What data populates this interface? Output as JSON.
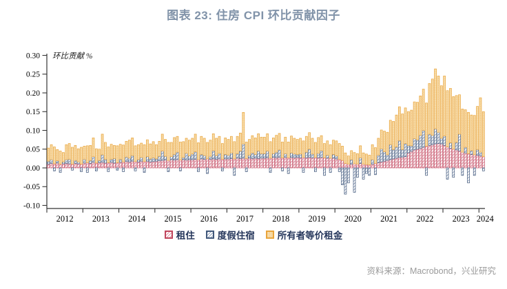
{
  "title": "图表 23: 住房 CPI 环比贡献因子",
  "source": "资料来源：Macrobond，兴业研究",
  "chart_data": {
    "type": "bar",
    "stacked": true,
    "title": "图表 23: 住房 CPI 环比贡献因子",
    "ylabel": "环比贡献 %",
    "unit": "%",
    "freq": "monthly",
    "start": "2012-01",
    "end": "2024-02",
    "ylim": [
      -0.108,
      0.305
    ],
    "y_ticks": [
      0.3,
      0.25,
      0.2,
      0.15,
      0.1,
      0.05,
      0.0,
      -0.05,
      -0.1
    ],
    "x_ticks": [
      2012,
      2013,
      2014,
      2015,
      2016,
      2017,
      2018,
      2019,
      2020,
      2021,
      2022,
      2023,
      2024
    ],
    "grid": false,
    "legend_position": "bottom",
    "colors": {
      "title": "#8193A9",
      "axis": "#333333",
      "tick_text": "#000000",
      "legend_text": "#26375C",
      "source_text": "#9A9A9A",
      "rent_border": "#C0455C",
      "rent_hatch": "#D2607A",
      "lodging_border": "#41587B",
      "lodging_hatch": "#5A7096",
      "oer_border": "#E9A53C",
      "oer_fill": "#F8DFAE",
      "oer_dot": "#FFF7E6"
    },
    "years": [
      2012,
      2013,
      2014,
      2015,
      2016,
      2017,
      2018,
      2019,
      2020,
      2021,
      2022,
      2023,
      2024
    ],
    "series": [
      {
        "name": "租住",
        "pattern": "diagonal-stripes",
        "color": "#C0455C",
        "values": {
          "2012": [
            0.01,
            0.012,
            0.011,
            0.013,
            0.01,
            0.011,
            0.012,
            0.011,
            0.01,
            0.012,
            0.011,
            0.01
          ],
          "2013": [
            0.013,
            0.014,
            0.012,
            0.015,
            0.013,
            0.014,
            0.015,
            0.013,
            0.014,
            0.015,
            0.013,
            0.014
          ],
          "2014": [
            0.015,
            0.016,
            0.017,
            0.016,
            0.018,
            0.017,
            0.016,
            0.018,
            0.017,
            0.018,
            0.016,
            0.017
          ],
          "2015": [
            0.018,
            0.019,
            0.02,
            0.021,
            0.02,
            0.022,
            0.021,
            0.022,
            0.021,
            0.022,
            0.021,
            0.022
          ],
          "2016": [
            0.022,
            0.023,
            0.022,
            0.024,
            0.023,
            0.024,
            0.023,
            0.024,
            0.023,
            0.024,
            0.023,
            0.024
          ],
          "2017": [
            0.024,
            0.025,
            0.024,
            0.026,
            0.025,
            0.026,
            0.025,
            0.026,
            0.025,
            0.026,
            0.025,
            0.026
          ],
          "2018": [
            0.026,
            0.027,
            0.026,
            0.028,
            0.027,
            0.028,
            0.027,
            0.028,
            0.027,
            0.028,
            0.027,
            0.028
          ],
          "2019": [
            0.027,
            0.028,
            0.027,
            0.028,
            0.027,
            0.028,
            0.027,
            0.028,
            0.027,
            0.026,
            0.026,
            0.026
          ],
          "2020": [
            0.024,
            0.023,
            0.02,
            0.012,
            0.01,
            0.01,
            0.011,
            0.01,
            0.012,
            0.01,
            0.009,
            0.008
          ],
          "2021": [
            0.01,
            0.012,
            0.014,
            0.016,
            0.018,
            0.02,
            0.022,
            0.024,
            0.026,
            0.028,
            0.029,
            0.03
          ],
          "2022": [
            0.04,
            0.044,
            0.048,
            0.05,
            0.052,
            0.055,
            0.058,
            0.06,
            0.062,
            0.064,
            0.065,
            0.064
          ],
          "2023": [
            0.06,
            0.056,
            0.052,
            0.05,
            0.048,
            0.045,
            0.042,
            0.04,
            0.038,
            0.036,
            0.035,
            0.034
          ],
          "2024": [
            0.032,
            0.03
          ]
        }
      },
      {
        "name": "度假住宿",
        "pattern": "diagonal-stripes",
        "color": "#41587B",
        "values": {
          "2012": [
            0.008,
            0.01,
            -0.008,
            0.006,
            -0.012,
            0.005,
            0.01,
            0.012,
            -0.006,
            0.008,
            0.005,
            -0.01
          ],
          "2013": [
            0.01,
            -0.012,
            0.008,
            0.015,
            -0.008,
            0.006,
            0.02,
            0.01,
            -0.01,
            0.008,
            0.012,
            -0.006
          ],
          "2014": [
            0.008,
            -0.01,
            0.012,
            0.01,
            0.015,
            -0.008,
            0.006,
            0.01,
            -0.012,
            0.012,
            0.008,
            0.01
          ],
          "2015": [
            0.006,
            0.012,
            0.025,
            0.01,
            -0.01,
            0.008,
            0.015,
            0.02,
            -0.008,
            0.006,
            0.018,
            0.01
          ],
          "2016": [
            0.015,
            0.02,
            -0.01,
            0.012,
            0.01,
            -0.015,
            0.008,
            0.022,
            0.01,
            0.015,
            -0.008,
            0.012
          ],
          "2017": [
            0.01,
            0.015,
            -0.02,
            0.012,
            0.02,
            0.038,
            -0.01,
            0.008,
            0.015,
            0.01,
            0.02,
            0.012
          ],
          "2018": [
            0.012,
            0.018,
            -0.012,
            0.01,
            0.015,
            0.02,
            -0.008,
            0.01,
            -0.015,
            0.012,
            0.01,
            0.008
          ],
          "2019": [
            0.01,
            -0.012,
            0.015,
            0.022,
            0.01,
            -0.01,
            0.012,
            0.018,
            -0.02,
            0.008,
            -0.012,
            0.01
          ],
          "2020": [
            0.008,
            -0.01,
            -0.045,
            -0.07,
            -0.04,
            0.012,
            -0.065,
            -0.025,
            0.015,
            -0.03,
            -0.015,
            -0.02
          ],
          "2021": [
            0.012,
            -0.018,
            0.02,
            0.035,
            0.025,
            0.015,
            0.04,
            0.025,
            0.03,
            0.045,
            0.02,
            0.035
          ],
          "2022": [
            0.02,
            0.015,
            0.03,
            0.025,
            0.035,
            0.045,
            -0.02,
            0.03,
            0.025,
            0.04,
            0.03,
            0.015
          ],
          "2023": [
            0.025,
            -0.03,
            0.015,
            -0.025,
            0.02,
            0.045,
            -0.02,
            0.015,
            -0.04,
            0.01,
            -0.02,
            0.015
          ],
          "2024": [
            0.01,
            -0.008
          ]
        }
      },
      {
        "name": "所有者等价租金",
        "pattern": "dots",
        "color": "#E9A53C",
        "values": {
          "2012": [
            0.035,
            0.04,
            0.045,
            0.03,
            0.035,
            0.025,
            0.04,
            0.042,
            0.045,
            0.04,
            0.035,
            0.045
          ],
          "2013": [
            0.035,
            0.045,
            0.04,
            0.05,
            0.038,
            0.03,
            0.055,
            0.045,
            0.042,
            0.04,
            0.035,
            0.045
          ],
          "2014": [
            0.04,
            0.045,
            0.042,
            0.048,
            0.047,
            0.042,
            0.04,
            0.038,
            0.045,
            0.045,
            0.04,
            0.043
          ],
          "2015": [
            0.038,
            0.04,
            0.045,
            0.045,
            0.048,
            0.038,
            0.045,
            0.042,
            0.048,
            0.042,
            0.04,
            0.042
          ],
          "2016": [
            0.042,
            0.047,
            0.045,
            0.048,
            0.046,
            0.044,
            0.043,
            0.045,
            0.046,
            0.045,
            0.042,
            0.044
          ],
          "2017": [
            0.042,
            0.044,
            0.046,
            0.046,
            0.048,
            0.084,
            0.044,
            0.042,
            0.046,
            0.044,
            0.046,
            0.044
          ],
          "2018": [
            0.044,
            0.046,
            0.044,
            0.042,
            0.045,
            0.044,
            0.042,
            0.044,
            0.042,
            0.045,
            0.042,
            0.04
          ],
          "2019": [
            0.042,
            0.044,
            0.042,
            0.044,
            0.042,
            0.04,
            0.042,
            0.04,
            0.038,
            0.038,
            0.036,
            0.038
          ],
          "2020": [
            0.04,
            0.042,
            0.038,
            0.028,
            0.022,
            0.024,
            0.03,
            0.028,
            0.032,
            0.03,
            0.028,
            0.026
          ],
          "2021": [
            0.04,
            0.042,
            0.045,
            0.05,
            0.055,
            0.06,
            0.065,
            0.075,
            0.085,
            0.09,
            0.095,
            0.095
          ],
          "2022": [
            0.09,
            0.095,
            0.098,
            0.1,
            0.105,
            0.11,
            0.115,
            0.135,
            0.15,
            0.16,
            0.15,
            0.14
          ],
          "2023": [
            0.16,
            0.15,
            0.145,
            0.14,
            0.125,
            0.105,
            0.115,
            0.1,
            0.11,
            0.095,
            0.105,
            0.115
          ],
          "2024": [
            0.145,
            0.12
          ]
        }
      }
    ]
  }
}
